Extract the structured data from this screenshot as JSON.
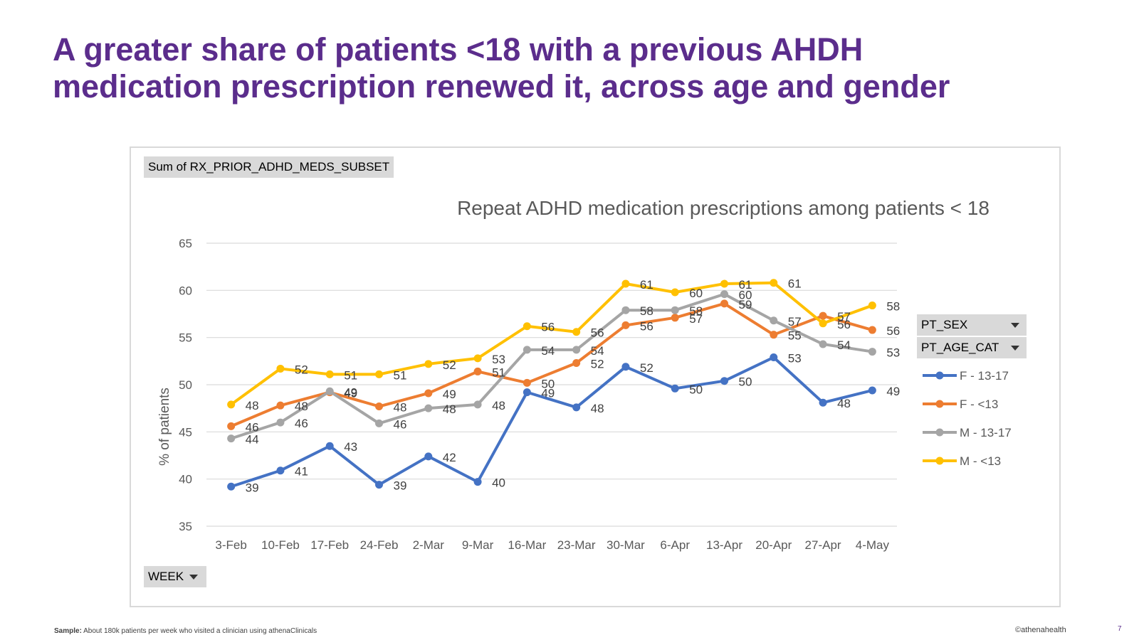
{
  "slide": {
    "title_line1": "A greater share of patients <18 with a previous AHDH",
    "title_line2": "medication prescription renewed it, across age and gender",
    "footer_sample_label": "Sample:",
    "footer_sample_text": " About 180k patients per week who visited a clinician using athenaClinicals",
    "footer_logo": "©athenahealth",
    "page_number": "7",
    "title_color": "#5b2d8c"
  },
  "pivot": {
    "value_field": "Sum of RX_PRIOR_ADHD_MEDS_SUBSET",
    "axis_field": "WEEK",
    "legend_field_1": "PT_SEX",
    "legend_field_2": "PT_AGE_CAT"
  },
  "chart_data": {
    "type": "line",
    "title": "Repeat ADHD medication prescriptions among patients < 18",
    "xlabel": "",
    "ylabel": "% of patients",
    "ylim": [
      35,
      65
    ],
    "yticks": [
      35,
      40,
      45,
      50,
      55,
      60,
      65
    ],
    "grid": true,
    "legend_position": "right",
    "categories": [
      "3-Feb",
      "10-Feb",
      "17-Feb",
      "24-Feb",
      "2-Mar",
      "9-Mar",
      "16-Mar",
      "23-Mar",
      "30-Mar",
      "6-Apr",
      "13-Apr",
      "20-Apr",
      "27-Apr",
      "4-May"
    ],
    "series": [
      {
        "name": "F - 13-17",
        "color": "#4472c4",
        "values": [
          39.2,
          40.9,
          43.5,
          39.4,
          42.4,
          39.7,
          49.2,
          47.6,
          51.9,
          49.6,
          50.4,
          52.9,
          48.1,
          49.4
        ],
        "labels": [
          "39",
          "41",
          "43",
          "39",
          "42",
          "40",
          "49",
          "48",
          "52",
          "50",
          "50",
          "53",
          "48",
          "49"
        ]
      },
      {
        "name": "F - <13",
        "color": "#ed7d31",
        "values": [
          45.6,
          47.8,
          49.2,
          47.7,
          49.1,
          51.4,
          50.2,
          52.3,
          56.3,
          57.1,
          58.6,
          55.3,
          57.3,
          55.8
        ],
        "labels": [
          "46",
          "48",
          "49",
          "48",
          "49",
          "51",
          "50",
          "52",
          "56",
          "57",
          "59",
          "55",
          "57",
          "56"
        ]
      },
      {
        "name": "M - 13-17",
        "color": "#a5a5a5",
        "values": [
          44.3,
          46.0,
          49.3,
          45.9,
          47.5,
          47.9,
          53.7,
          53.7,
          57.9,
          57.9,
          59.6,
          56.8,
          54.3,
          53.5
        ],
        "labels": [
          "44",
          "46",
          "49",
          "46",
          "48",
          "48",
          "54",
          "54",
          "58",
          "58",
          "60",
          "57",
          "54",
          "53"
        ]
      },
      {
        "name": "M - <13",
        "color": "#ffc000",
        "values": [
          47.9,
          51.7,
          51.1,
          51.1,
          52.2,
          52.8,
          56.2,
          55.6,
          60.7,
          59.8,
          60.7,
          60.8,
          56.5,
          58.4
        ],
        "labels": [
          "48",
          "52",
          "51",
          "51",
          "52",
          "53",
          "56",
          "56",
          "61",
          "60",
          "61",
          "61",
          "56",
          "58"
        ]
      }
    ]
  }
}
